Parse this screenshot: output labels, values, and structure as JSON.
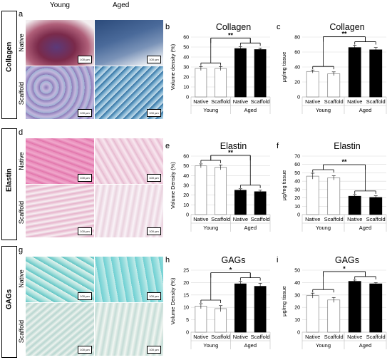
{
  "column_headers": [
    "Young",
    "Aged"
  ],
  "rows": [
    {
      "label": "Collagen",
      "letter": "a",
      "sub": [
        "Native",
        "Scaffold"
      ],
      "stain": "masson"
    },
    {
      "label": "Elastin",
      "letter": "d",
      "sub": [
        "Native",
        "Scaffold"
      ],
      "stain": "he"
    },
    {
      "label": "GAGs",
      "letter": "g",
      "sub": [
        "Native",
        "Scaffold"
      ],
      "stain": "alcian"
    }
  ],
  "scale_bar": "100 µm",
  "colors": {
    "young_fill": "#ffffff",
    "aged_fill": "#000000",
    "bar_edge": "#808080"
  },
  "chart_data": [
    {
      "letter": "b",
      "type": "bar",
      "title": "Collagen",
      "ylabel": "Volume density (%)",
      "ylim": [
        0,
        60
      ],
      "ytick_step": 10,
      "categories": [
        "Native",
        "Scaffold",
        "Native",
        "Scaffold"
      ],
      "groups": [
        "Young",
        "Aged"
      ],
      "values": [
        28.5,
        28.5,
        48.5,
        47.5
      ],
      "errors": [
        2,
        2,
        2,
        1.5
      ],
      "significance": "**"
    },
    {
      "letter": "c",
      "type": "bar",
      "title": "Collagen",
      "ylabel": "μg/mg tissue",
      "ylim": [
        0,
        80
      ],
      "ytick_step": 20,
      "categories": [
        "Native",
        "Scaffold",
        "Native",
        "Scaffold"
      ],
      "groups": [
        "Young",
        "Aged"
      ],
      "values": [
        34,
        31,
        66,
        63
      ],
      "errors": [
        2,
        2.5,
        3,
        3
      ],
      "significance": "**"
    },
    {
      "letter": "e",
      "type": "bar",
      "title": "Elastin",
      "ylabel": "Volume Density (%)",
      "ylim": [
        0,
        60
      ],
      "ytick_step": 10,
      "categories": [
        "Native",
        "Scaffold",
        "Native",
        "Scaffold"
      ],
      "groups": [
        "Young",
        "Aged"
      ],
      "values": [
        50,
        48.5,
        25,
        23.5
      ],
      "errors": [
        2,
        2.5,
        1.5,
        1.5
      ],
      "significance": "**"
    },
    {
      "letter": "f",
      "type": "bar",
      "title": "Elastin",
      "ylabel": "μg/mg tissue",
      "ylim": [
        0,
        70
      ],
      "ytick_step": 10,
      "categories": [
        "Native",
        "Scaffold",
        "Native",
        "Scaffold"
      ],
      "groups": [
        "Young",
        "Aged"
      ],
      "values": [
        46,
        44,
        22,
        20.5
      ],
      "errors": [
        3.5,
        2.5,
        2,
        2
      ],
      "significance": "**"
    },
    {
      "letter": "h",
      "type": "bar",
      "title": "GAGs",
      "ylabel": "Volume Density (%)",
      "ylim": [
        0,
        25
      ],
      "ytick_step": 5,
      "categories": [
        "Native",
        "Scaffold",
        "Native",
        "Scaffold"
      ],
      "groups": [
        "Young",
        "Aged"
      ],
      "values": [
        10.5,
        9.5,
        19.5,
        18.5
      ],
      "errors": [
        1,
        1.2,
        1,
        1.2
      ],
      "significance": "*"
    },
    {
      "letter": "i",
      "type": "bar",
      "title": "GAGs",
      "ylabel": "μg/mg tissue",
      "ylim": [
        0,
        50
      ],
      "ytick_step": 10,
      "categories": [
        "Native",
        "Scaffold",
        "Native",
        "Scaffold"
      ],
      "groups": [
        "Young",
        "Aged"
      ],
      "values": [
        29.5,
        26,
        41,
        39
      ],
      "errors": [
        2,
        2,
        1,
        1
      ],
      "significance": "*"
    }
  ]
}
